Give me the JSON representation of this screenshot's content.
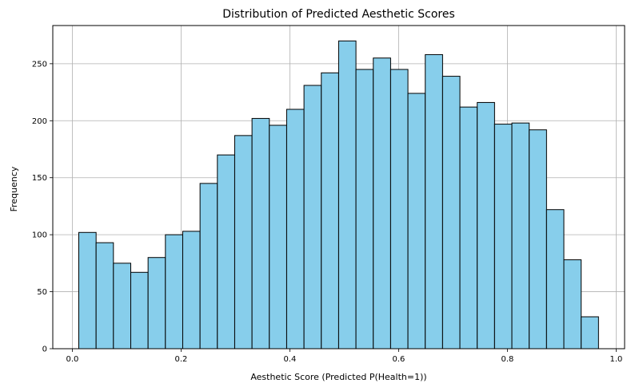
{
  "chart_data": {
    "type": "bar",
    "title": "Distribution of Predicted Aesthetic Scores",
    "xlabel": "Aesthetic Score (Predicted P(Health=1))",
    "ylabel": "Frequency",
    "xlim": [
      -0.036,
      1.0155
    ],
    "ylim": [
      0,
      283.5
    ],
    "x_ticks": [
      0.0,
      0.2,
      0.4,
      0.6,
      0.8,
      1.0
    ],
    "x_tick_labels": [
      "0.0",
      "0.2",
      "0.4",
      "0.6",
      "0.8",
      "1.0"
    ],
    "y_ticks": [
      0,
      50,
      100,
      150,
      200,
      250
    ],
    "y_tick_labels": [
      "0",
      "50",
      "100",
      "150",
      "200",
      "250"
    ],
    "grid": true,
    "bar_color": "#87CEEB",
    "edge_color": "#000000",
    "bin_start": 0.0118,
    "bin_end": 0.9675,
    "values": [
      102,
      93,
      75,
      67,
      80,
      100,
      103,
      145,
      170,
      187,
      202,
      196,
      210,
      231,
      242,
      270,
      245,
      255,
      245,
      224,
      258,
      239,
      212,
      216,
      197,
      198,
      192,
      122,
      78,
      28
    ]
  }
}
